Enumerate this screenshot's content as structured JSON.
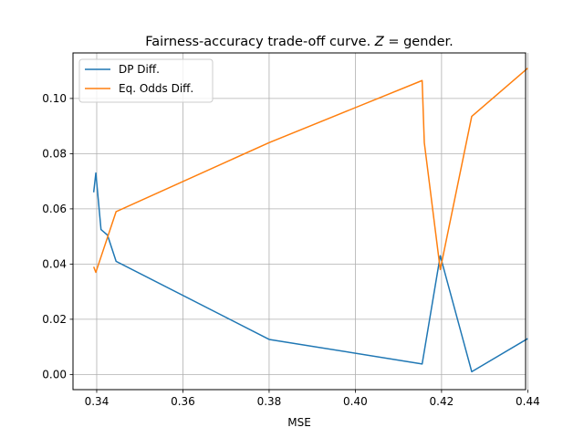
{
  "chart_data": {
    "type": "line",
    "title": "Fairness-accuracy trade-off curve. Z =  gender.",
    "title_parts": {
      "prefix": "Fairness-accuracy trade-off curve. ",
      "var": "Z",
      "suffix": " =  gender."
    },
    "xlabel": "MSE",
    "ylabel": "",
    "xlim": [
      0.3345,
      0.4395
    ],
    "ylim": [
      -0.0055,
      0.1165
    ],
    "xticks": [
      0.34,
      0.36,
      0.38,
      0.4,
      0.42,
      0.44
    ],
    "xtick_labels": [
      "0.34",
      "0.36",
      "0.38",
      "0.40",
      "0.42",
      "0.44"
    ],
    "yticks": [
      0.0,
      0.02,
      0.04,
      0.06,
      0.08,
      0.1
    ],
    "ytick_labels": [
      "0.00",
      "0.02",
      "0.04",
      "0.06",
      "0.08",
      "0.10"
    ],
    "grid": true,
    "legend_position": "top-left",
    "series": [
      {
        "name": "DP Diff.",
        "color": "#1f77b4",
        "x": [
          0.3393,
          0.3398,
          0.341,
          0.3425,
          0.3445,
          0.38,
          0.4155,
          0.4197,
          0.427,
          0.44
        ],
        "y": [
          0.066,
          0.073,
          0.0525,
          0.0505,
          0.041,
          0.0127,
          0.0038,
          0.043,
          0.001,
          0.013
        ]
      },
      {
        "name": "Eq. Odds Diff.",
        "color": "#ff7f0e",
        "x": [
          0.3393,
          0.3398,
          0.3445,
          0.38,
          0.4155,
          0.416,
          0.4197,
          0.427,
          0.44
        ],
        "y": [
          0.039,
          0.037,
          0.059,
          0.084,
          0.1065,
          0.084,
          0.038,
          0.0935,
          0.111
        ]
      }
    ]
  }
}
